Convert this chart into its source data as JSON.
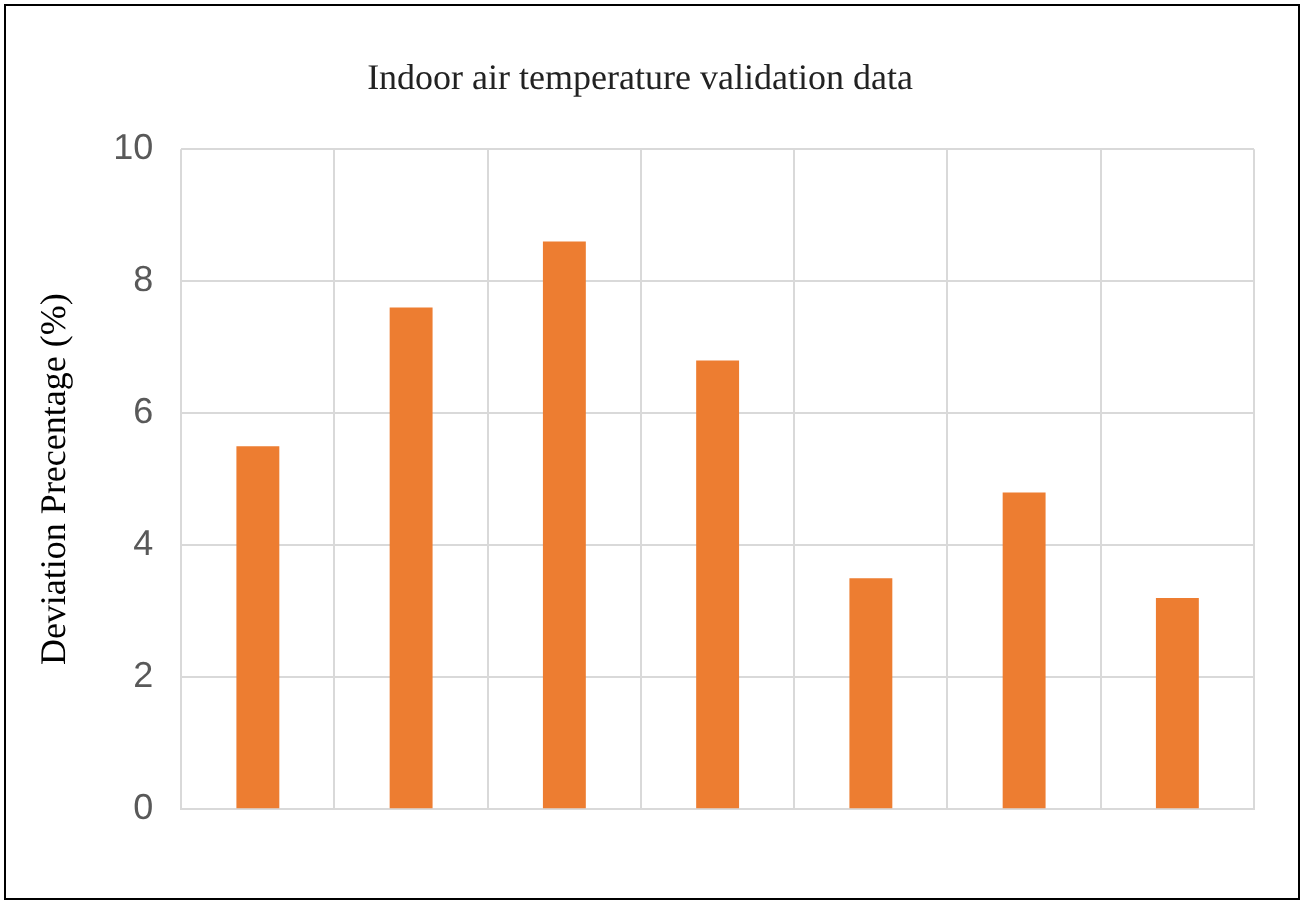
{
  "chart_data": {
    "type": "bar",
    "title": "Indoor air temperature validation data",
    "ylabel": "Deviation Precentage (%)",
    "categories": [
      null,
      null,
      null,
      null,
      null,
      null,
      null
    ],
    "values": [
      5.5,
      7.6,
      8.6,
      6.8,
      3.5,
      4.8,
      3.2
    ],
    "color": "#ed7d31",
    "ylim": [
      0,
      10
    ],
    "yticks": [
      0,
      2,
      4,
      6,
      8,
      10
    ],
    "grid": true
  }
}
